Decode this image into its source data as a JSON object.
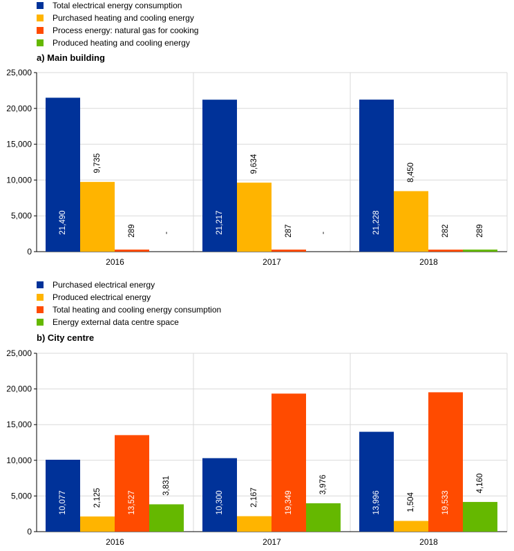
{
  "colors": {
    "blue": "#003299",
    "yellow": "#ffb400",
    "orange": "#ff4b00",
    "green": "#65b800",
    "grid": "#d9d9d9",
    "axis": "#000000"
  },
  "chart_data": [
    {
      "type": "bar",
      "title": "a) Main building",
      "categories": [
        "2016",
        "2017",
        "2018"
      ],
      "ylim": [
        0,
        25000
      ],
      "yticks": [
        "0",
        "5,000",
        "10,000",
        "15,000",
        "20,000",
        "25,000"
      ],
      "legend_placement": "top-left",
      "grid": true,
      "series": [
        {
          "name": "Total electrical energy consumption",
          "color": "#003299",
          "values": [
            21490,
            21217,
            21228
          ],
          "labels": [
            "21,490",
            "21,217",
            "21,228"
          ]
        },
        {
          "name": "Purchased heating and cooling energy",
          "color": "#ffb400",
          "values": [
            9735,
            9634,
            8450
          ],
          "labels": [
            "9,735",
            "9,634",
            "8,450"
          ]
        },
        {
          "name": "Process energy: natural gas for cooking",
          "color": "#ff4b00",
          "values": [
            289,
            287,
            282
          ],
          "labels": [
            "289",
            "287",
            "282"
          ]
        },
        {
          "name": "Produced heating and cooling energy",
          "color": "#65b800",
          "values": [
            0,
            0,
            289
          ],
          "labels": [
            "-",
            "-",
            "289"
          ]
        }
      ]
    },
    {
      "type": "bar",
      "title": "b) City centre",
      "categories": [
        "2016",
        "2017",
        "2018"
      ],
      "ylim": [
        0,
        25000
      ],
      "yticks": [
        "0",
        "5,000",
        "10,000",
        "15,000",
        "20,000",
        "25,000"
      ],
      "legend_placement": "top-left",
      "grid": true,
      "series": [
        {
          "name": "Purchased electrical energy",
          "color": "#003299",
          "values": [
            10077,
            10300,
            13996
          ],
          "labels": [
            "10,077",
            "10,300",
            "13,996"
          ]
        },
        {
          "name": "Produced electrical energy",
          "color": "#ffb400",
          "values": [
            2125,
            2167,
            1504
          ],
          "labels": [
            "2,125",
            "2,167",
            "1,504"
          ]
        },
        {
          "name": "Total heating and cooling energy consumption",
          "color": "#ff4b00",
          "values": [
            13527,
            19349,
            19533
          ],
          "labels": [
            "13,527",
            "19,349",
            "19,533"
          ]
        },
        {
          "name": "Energy external data centre space",
          "color": "#65b800",
          "values": [
            3831,
            3976,
            4160
          ],
          "labels": [
            "3,831",
            "3,976",
            "4,160"
          ]
        }
      ]
    }
  ]
}
